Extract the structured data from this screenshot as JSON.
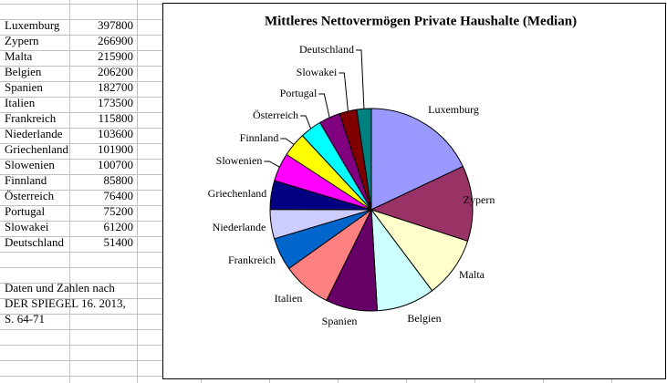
{
  "chart_data": {
    "type": "pie",
    "title": "Mittleres Nettovermögen Private Haushalte (Median)",
    "categories": [
      "Luxemburg",
      "Zypern",
      "Malta",
      "Belgien",
      "Spanien",
      "Italien",
      "Frankreich",
      "Niederlande",
      "Griechenland",
      "Slowenien",
      "Finnland",
      "Österreich",
      "Portugal",
      "Slowakei",
      "Deutschland"
    ],
    "values": [
      397800,
      266900,
      215900,
      206200,
      182700,
      173500,
      115800,
      103600,
      101900,
      100700,
      85800,
      76400,
      75200,
      61200,
      51400
    ],
    "colors": [
      "#9999ff",
      "#993366",
      "#ffffcc",
      "#ccffff",
      "#660066",
      "#ff8080",
      "#0066cc",
      "#ccccff",
      "#000080",
      "#ff00ff",
      "#ffff00",
      "#00ffff",
      "#800080",
      "#800000",
      "#008080"
    ]
  },
  "sheet": {
    "notes": [
      "Daten und Zahlen nach",
      "DER SPIEGEL 16. 2013,",
      "S. 64-71"
    ]
  }
}
